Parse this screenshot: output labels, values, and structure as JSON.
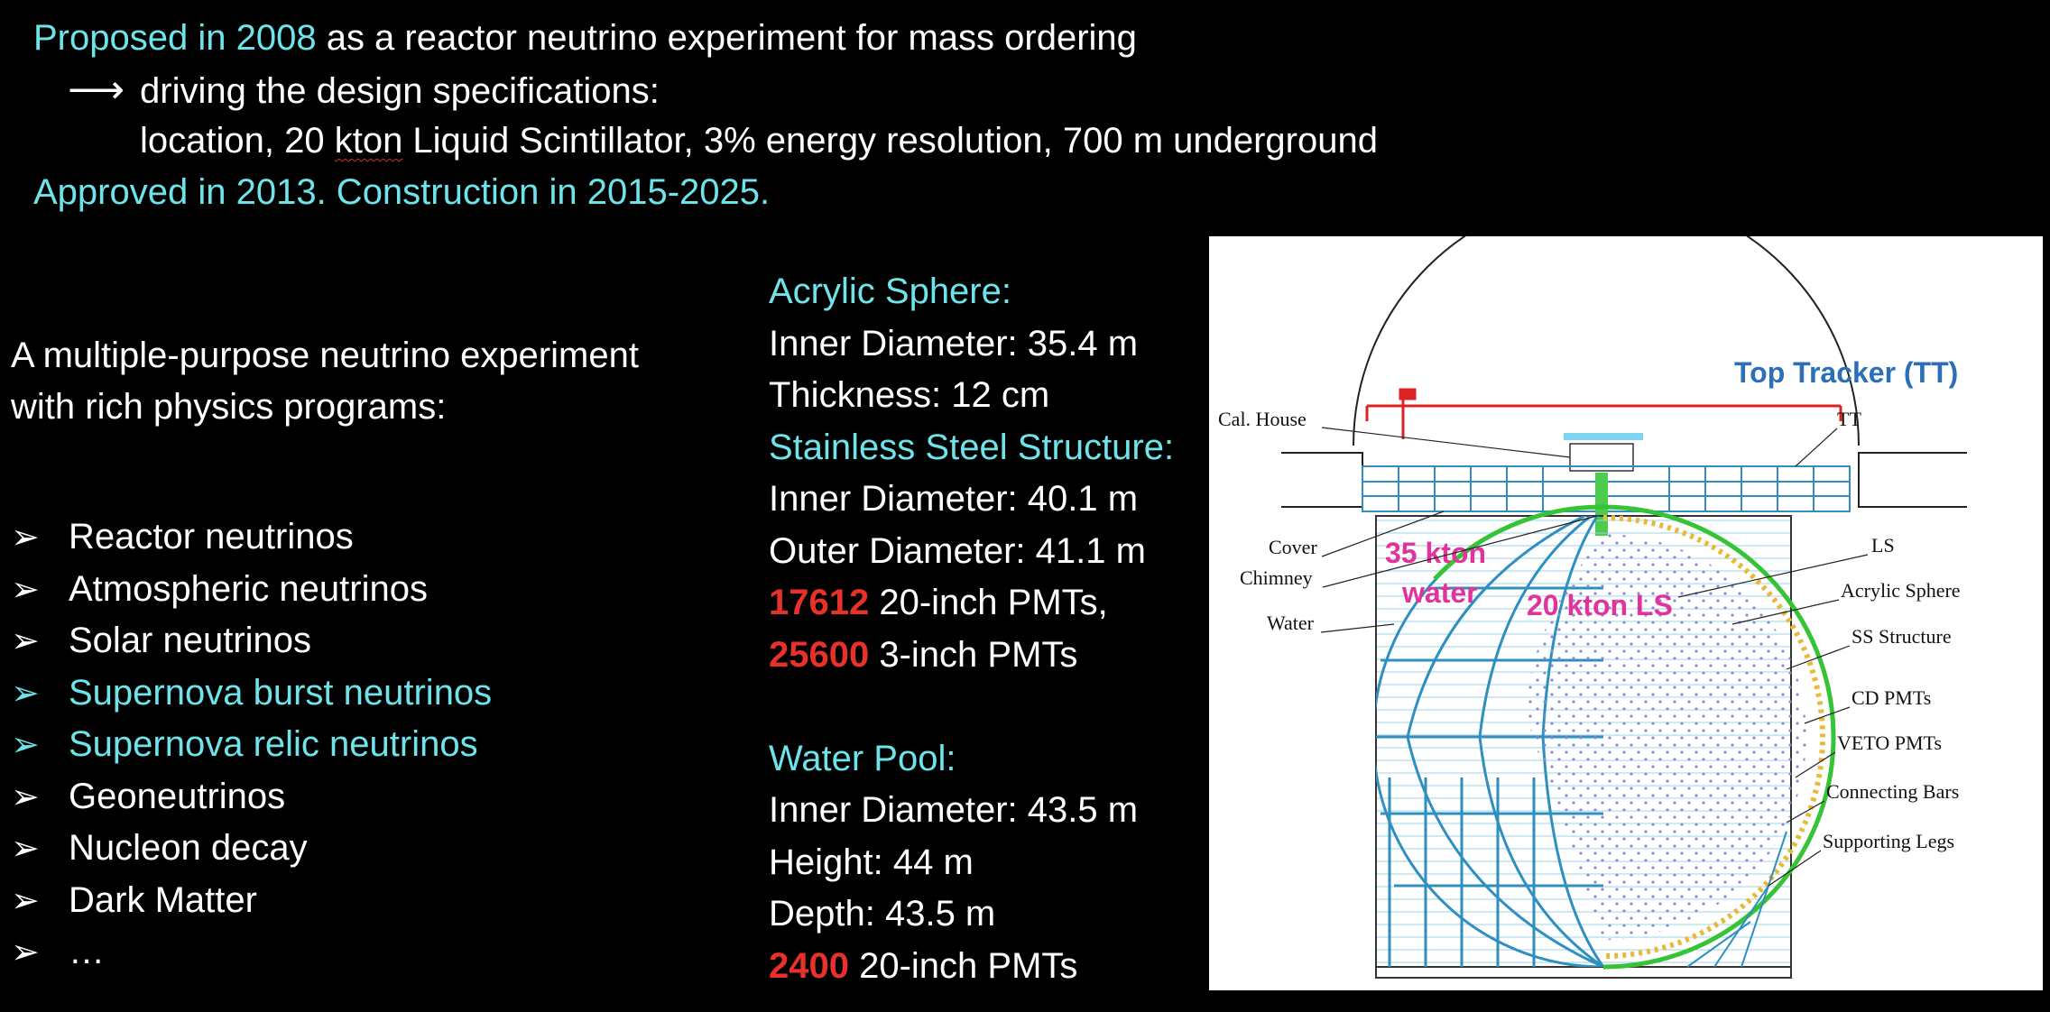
{
  "header": {
    "line1_highlight": "Proposed in 2008",
    "line1_rest": " as a reactor neutrino experiment for mass ordering",
    "line2_arrow": "⟶",
    "line2_text": "driving the design specifications:",
    "line3_a": "location, 20 ",
    "line3_kton": "kton",
    "line3_b": " Liquid Scintillator, 3% energy resolution, 700 m underground",
    "line4": "Approved in 2013. Construction in 2015-2025."
  },
  "intro": {
    "line1": "A multiple-purpose neutrino experiment",
    "line2": "with rich physics programs:"
  },
  "programs": [
    {
      "mark": "➢",
      "text": "Reactor neutrinos",
      "highlight": false
    },
    {
      "mark": "➢",
      "text": "Atmospheric neutrinos",
      "highlight": false
    },
    {
      "mark": "➢",
      "text": "Solar neutrinos",
      "highlight": false
    },
    {
      "mark": "➢",
      "text": "Supernova burst neutrinos",
      "highlight": true
    },
    {
      "mark": "➢",
      "text": "Supernova relic neutrinos",
      "highlight": true
    },
    {
      "mark": "➢",
      "text": "Geoneutrinos",
      "highlight": false
    },
    {
      "mark": "➢",
      "text": "Nucleon decay",
      "highlight": false
    },
    {
      "mark": "➢",
      "text": "Dark Matter",
      "highlight": false
    },
    {
      "mark": "➢",
      "text": "…",
      "highlight": false
    }
  ],
  "specs": {
    "acrylic_title": "Acrylic Sphere:",
    "acrylic_inner": "Inner Diameter: 35.4 m",
    "acrylic_thick": "Thickness: 12 cm",
    "ss_title": "Stainless Steel Structure:",
    "ss_inner": "Inner Diameter: 40.1 m",
    "ss_outer": "Outer Diameter: 41.1 m",
    "pmt20_count": "17612",
    "pmt20_text": " 20-inch PMTs,",
    "pmt3_count": "25600",
    "pmt3_text": " 3-inch PMTs",
    "pool_title": "Water Pool:",
    "pool_inner": "Inner Diameter: 43.5 m",
    "pool_height": "Height: 44 m",
    "pool_depth": "Depth: 43.5 m",
    "pool_pmt_count": "2400",
    "pool_pmt_text": " 20-inch PMTs"
  },
  "diagram": {
    "top_tracker": "Top Tracker (TT)",
    "water_label_1": "35 kton",
    "water_label_2": "water",
    "ls_label": "20 kton LS",
    "left_labels": [
      "Cal. House",
      "Cover",
      "Chimney",
      "Water"
    ],
    "right_labels": [
      "TT",
      "LS",
      "Acrylic Sphere",
      "SS Structure",
      "CD PMTs",
      "VETO PMTs",
      "Connecting Bars",
      "Supporting Legs"
    ],
    "colors": {
      "frame": "#2f8fbf",
      "sphere_ring": "#36c436",
      "magenta": "#e0349c",
      "top_label": "#2a6fb8",
      "red_frame": "#d22"
    }
  }
}
